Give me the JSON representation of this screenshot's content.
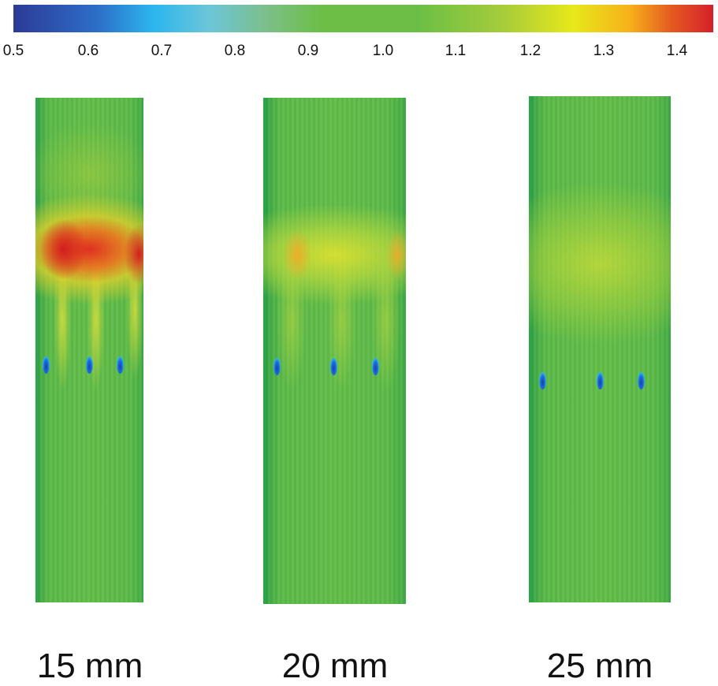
{
  "colorbar": {
    "ticks": [
      "0.5",
      "0.6",
      "0.7",
      "0.8",
      "0.9",
      "1.0",
      "1.1",
      "1.2",
      "1.3",
      "1.4"
    ],
    "min": 0.5,
    "max": 1.45,
    "colors": [
      "#2b3b96",
      "#2bb6ee",
      "#6cbf46",
      "#e8e81a",
      "#d4202a"
    ]
  },
  "panels": [
    {
      "label": "15 mm"
    },
    {
      "label": "20 mm"
    },
    {
      "label": "25 mm"
    }
  ]
}
